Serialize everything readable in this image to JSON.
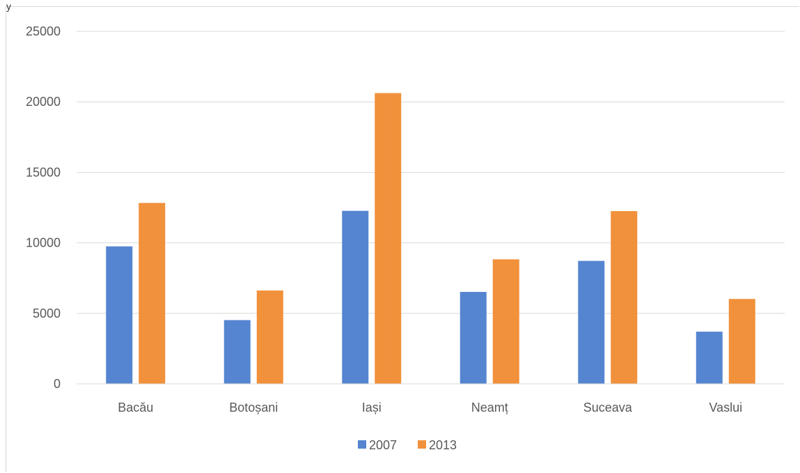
{
  "chart_data": {
    "type": "bar",
    "title": "",
    "xlabel": "",
    "ylabel": "",
    "categories": [
      "Bacău",
      "Botoșani",
      "Iași",
      "Neamț",
      "Suceava",
      "Vaslui"
    ],
    "series": [
      {
        "name": "2007",
        "color": "#5585d1",
        "values": [
          9750,
          4520,
          12270,
          6520,
          8720,
          3700
        ]
      },
      {
        "name": "2013",
        "color": "#f1913b",
        "values": [
          12830,
          6620,
          20620,
          8830,
          12250,
          6020
        ]
      }
    ],
    "ylim": [
      0,
      25000
    ],
    "yticks": [
      "0",
      "5000",
      "10000",
      "15000",
      "20000",
      "25000"
    ],
    "grid": true,
    "legend_position": "bottom",
    "gridline_color": "#d9d9d9"
  }
}
